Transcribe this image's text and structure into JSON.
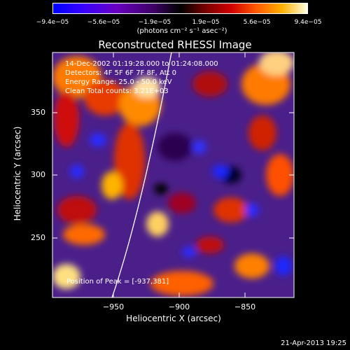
{
  "colorbar": {
    "ticks": [
      "−9.4e−05",
      "−5.6e−05",
      "−1.9e−05",
      "1.9e−05",
      "5.6e−05",
      "9.4e−05"
    ],
    "unit": "(photons cm⁻² s⁻¹ asec⁻²)"
  },
  "title": "Reconstructed RHESSI Image",
  "info": {
    "time": "14-Dec-2002 01:19:28.000 to 01:24:08.000",
    "detectors": "Detectors: 4F 5F 6F 7F 8F, Att 0",
    "energy": "Energy Range: 25.0 - 50.0 keV",
    "clean": "Clean    Total counts: 3.21E+03"
  },
  "peak": "Position of Peak = [-937,381]",
  "axes": {
    "x_label": "Heliocentric X (arcsec)",
    "y_label": "Heliocentric Y (arcsec)",
    "x_ticks": [
      "−950",
      "−900",
      "−850"
    ],
    "y_ticks": [
      "350",
      "300",
      "250"
    ]
  },
  "footer_date": "21-Apr-2013 19:25"
}
